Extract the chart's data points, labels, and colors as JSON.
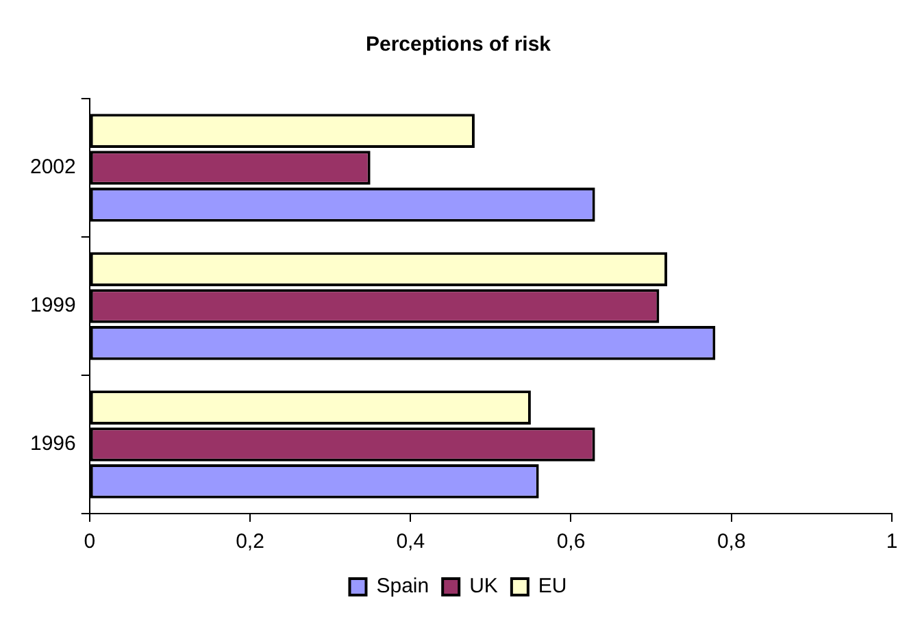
{
  "chart_data": {
    "type": "bar",
    "orientation": "horizontal",
    "title": "Perceptions of risk",
    "categories": [
      "2002",
      "1999",
      "1996"
    ],
    "series": [
      {
        "name": "Spain",
        "color": "#9999ff",
        "values": [
          0.63,
          0.78,
          0.56
        ]
      },
      {
        "name": "UK",
        "color": "#993366",
        "values": [
          0.35,
          0.71,
          0.63
        ]
      },
      {
        "name": "EU",
        "color": "#ffffcc",
        "values": [
          0.48,
          0.72,
          0.55
        ]
      }
    ],
    "xlim": [
      0,
      1
    ],
    "xticks": [
      0,
      {
        "value": 0.2,
        "label": "0,2"
      },
      {
        "value": 0.4,
        "label": "0,4"
      },
      {
        "value": 0.6,
        "label": "0,6"
      },
      {
        "value": 0.8,
        "label": "0,8"
      },
      1
    ],
    "grid": false,
    "legend": "bottom"
  }
}
